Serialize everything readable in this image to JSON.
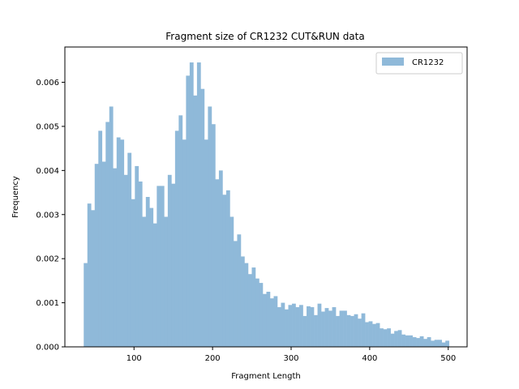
{
  "chart_data": {
    "type": "bar",
    "title": "Fragment size of CR1232 CUT&RUN data",
    "xlabel": "Fragment Length",
    "ylabel": "Frequency",
    "xlim": [
      12,
      524
    ],
    "ylim": [
      0,
      0.0068
    ],
    "xticks": [
      100,
      200,
      300,
      400,
      500
    ],
    "xtick_labels": [
      "100",
      "200",
      "300",
      "400",
      "500"
    ],
    "yticks": [
      0,
      0.001,
      0.002,
      0.003,
      0.004,
      0.005,
      0.006
    ],
    "ytick_labels": [
      "0.000",
      "0.001",
      "0.002",
      "0.003",
      "0.004",
      "0.005",
      "0.006"
    ],
    "legend_position": "top-right",
    "grid": false,
    "series": [
      {
        "name": "CR1232",
        "color": "#8fb9d9",
        "bin_start": 36,
        "bin_width": 4.65,
        "values": [
          0.0019,
          0.00325,
          0.0031,
          0.00415,
          0.0049,
          0.0042,
          0.0051,
          0.00545,
          0.00405,
          0.00475,
          0.0047,
          0.0039,
          0.0044,
          0.00335,
          0.0041,
          0.00375,
          0.00295,
          0.0034,
          0.00315,
          0.0028,
          0.00365,
          0.00365,
          0.00295,
          0.0039,
          0.0037,
          0.0049,
          0.00525,
          0.0047,
          0.00615,
          0.00645,
          0.0057,
          0.00645,
          0.00585,
          0.0047,
          0.00545,
          0.00505,
          0.0038,
          0.004,
          0.00345,
          0.00355,
          0.00295,
          0.0024,
          0.00255,
          0.00205,
          0.0019,
          0.00165,
          0.0018,
          0.00155,
          0.00145,
          0.0012,
          0.00125,
          0.0011,
          0.00115,
          0.0009,
          0.001,
          0.00085,
          0.00095,
          0.00098,
          0.0009,
          0.00095,
          0.0007,
          0.00092,
          0.0009,
          0.00072,
          0.00098,
          0.0008,
          0.00088,
          0.00082,
          0.0009,
          0.0007,
          0.00082,
          0.00082,
          0.00072,
          0.0007,
          0.00074,
          0.00064,
          0.00076,
          0.00056,
          0.00058,
          0.00052,
          0.00054,
          0.00042,
          0.0004,
          0.00042,
          0.0003,
          0.00036,
          0.00038,
          0.00028,
          0.00026,
          0.00026,
          0.00022,
          0.0002,
          0.00024,
          0.00018,
          0.00022,
          0.00014,
          0.00016,
          0.00016,
          0.0001,
          0.00014
        ]
      }
    ]
  }
}
